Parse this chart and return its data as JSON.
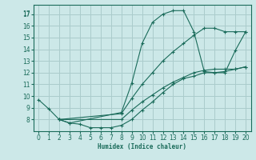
{
  "bg_color": "#cce8e8",
  "grid_color": "#aacccc",
  "line_color": "#1a6b5a",
  "xlabel": "Humidex (Indice chaleur)",
  "xlim": [
    -0.5,
    20.5
  ],
  "ylim": [
    7,
    17.8
  ],
  "xticks": [
    0,
    1,
    2,
    3,
    4,
    5,
    6,
    7,
    8,
    9,
    10,
    11,
    12,
    13,
    14,
    15,
    16,
    17,
    18,
    19,
    20
  ],
  "yticks": [
    8,
    9,
    10,
    11,
    12,
    13,
    14,
    15,
    16,
    17
  ],
  "ytick_labels": [
    "8",
    "9",
    "10",
    "11",
    "12",
    "13",
    "14",
    "15",
    "16",
    "17"
  ],
  "lines": [
    {
      "x": [
        0,
        1,
        2,
        3,
        8,
        9,
        10,
        11,
        12,
        13,
        14,
        15,
        16,
        17,
        18,
        19,
        20
      ],
      "y": [
        9.7,
        8.9,
        8.0,
        7.7,
        8.6,
        11.1,
        14.5,
        16.3,
        17.0,
        17.3,
        17.3,
        15.5,
        12.1,
        12.0,
        12.0,
        13.9,
        15.5
      ]
    },
    {
      "x": [
        2,
        3,
        4,
        5,
        6,
        7,
        8,
        9,
        10,
        11,
        12,
        13,
        14,
        15,
        16,
        17,
        18,
        19,
        20
      ],
      "y": [
        8.0,
        7.7,
        7.6,
        7.3,
        7.3,
        7.3,
        7.5,
        8.0,
        8.8,
        9.5,
        10.3,
        11.0,
        11.5,
        11.7,
        12.0,
        12.0,
        12.1,
        12.3,
        12.5
      ]
    },
    {
      "x": [
        2,
        8,
        9,
        10,
        11,
        12,
        13,
        14,
        15,
        16,
        17,
        18,
        19,
        20
      ],
      "y": [
        8.0,
        8.5,
        9.8,
        11.0,
        12.0,
        13.0,
        13.8,
        14.5,
        15.2,
        15.8,
        15.8,
        15.5,
        15.5,
        15.5
      ]
    },
    {
      "x": [
        2,
        8,
        9,
        10,
        11,
        12,
        13,
        14,
        15,
        16,
        17,
        18,
        19,
        20
      ],
      "y": [
        8.0,
        8.0,
        8.8,
        9.5,
        10.1,
        10.7,
        11.2,
        11.6,
        12.0,
        12.2,
        12.3,
        12.3,
        12.3,
        12.5
      ]
    }
  ]
}
